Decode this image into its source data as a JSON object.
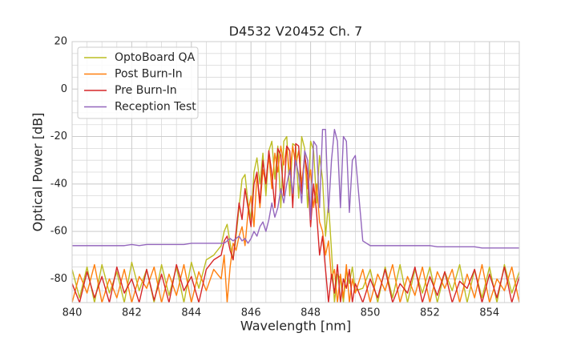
{
  "chart_data": {
    "type": "line",
    "title": "D4532 V20452 Ch. 7",
    "x_label": "Wavelength [nm]",
    "y_label": "Optical Power [dB]",
    "xlim": [
      840,
      855
    ],
    "ylim": [
      -90,
      20
    ],
    "xticks": [
      840,
      842,
      844,
      846,
      848,
      850,
      852,
      854
    ],
    "yticks": [
      -80,
      -60,
      -40,
      -20,
      0,
      20
    ],
    "grid": true,
    "minor_grid": {
      "x": 0.5,
      "y": 5
    },
    "legend": "upper left",
    "x": [
      840,
      840.25,
      840.5,
      840.75,
      841,
      841.25,
      841.5,
      841.75,
      842,
      842.25,
      842.5,
      842.75,
      843,
      843.25,
      843.5,
      843.75,
      844,
      844.25,
      844.5,
      844.75,
      845,
      845.1,
      845.2,
      845.3,
      845.4,
      845.5,
      845.6,
      845.7,
      845.8,
      845.9,
      846,
      846.1,
      846.2,
      846.3,
      846.4,
      846.5,
      846.6,
      846.7,
      846.8,
      846.9,
      847,
      847.1,
      847.2,
      847.3,
      847.4,
      847.5,
      847.6,
      847.7,
      847.8,
      847.9,
      848,
      848.1,
      848.2,
      848.3,
      848.4,
      848.5,
      848.6,
      848.7,
      848.8,
      848.9,
      849,
      849.1,
      849.2,
      849.3,
      849.4,
      849.5,
      849.75,
      850,
      850.25,
      850.5,
      850.75,
      851,
      851.25,
      851.5,
      851.75,
      852,
      852.25,
      852.5,
      852.75,
      853,
      853.25,
      853.5,
      853.75,
      854,
      854.25,
      854.5,
      854.75,
      855
    ],
    "series": [
      {
        "name": "OptoBoard QA",
        "color": "#bcbd22",
        "values": [
          -76,
          -88,
          -75,
          -90,
          -74,
          -86,
          -77,
          -90,
          -73,
          -85,
          -76,
          -90,
          -74,
          -87,
          -75,
          -90,
          -73,
          -84,
          -72,
          -70,
          -66,
          -60,
          -57,
          -65,
          -72,
          -62,
          -50,
          -38,
          -36,
          -48,
          -55,
          -35,
          -29,
          -40,
          -27,
          -45,
          -26,
          -22,
          -38,
          -24,
          -50,
          -22,
          -20,
          -45,
          -23,
          -24,
          -46,
          -20,
          -25,
          -50,
          -22,
          -26,
          -48,
          -28,
          -38,
          -62,
          -48,
          -68,
          -90,
          -78,
          -80,
          -90,
          -76,
          -82,
          -75,
          -85,
          -84,
          -76,
          -90,
          -75,
          -88,
          -74,
          -90,
          -76,
          -86,
          -75,
          -90,
          -77,
          -85,
          -74,
          -90,
          -76,
          -88,
          -75,
          -90,
          -74,
          -86,
          -77
        ]
      },
      {
        "name": "Post Burn-In",
        "color": "#ff7f0e",
        "values": [
          -90,
          -78,
          -86,
          -74,
          -90,
          -80,
          -88,
          -76,
          -90,
          -79,
          -84,
          -75,
          -90,
          -78,
          -87,
          -74,
          -90,
          -77,
          -85,
          -76,
          -80,
          -70,
          -90,
          -75,
          -65,
          -68,
          -62,
          -58,
          -66,
          -52,
          -45,
          -58,
          -36,
          -50,
          -34,
          -40,
          -28,
          -42,
          -27,
          -35,
          -24,
          -32,
          -24,
          -36,
          -24,
          -32,
          -26,
          -40,
          -28,
          -42,
          -34,
          -50,
          -40,
          -56,
          -60,
          -70,
          -64,
          -80,
          -76,
          -90,
          -78,
          -88,
          -74,
          -90,
          -80,
          -86,
          -76,
          -90,
          -78,
          -85,
          -74,
          -90,
          -79,
          -87,
          -75,
          -90,
          -77,
          -84,
          -76,
          -90,
          -78,
          -88,
          -74,
          -90,
          -80,
          -85,
          -75,
          -90
        ]
      },
      {
        "name": "Pre Burn-In",
        "color": "#d62728",
        "values": [
          -82,
          -90,
          -77,
          -88,
          -79,
          -90,
          -75,
          -86,
          -80,
          -90,
          -76,
          -89,
          -78,
          -90,
          -74,
          -85,
          -79,
          -90,
          -76,
          -72,
          -70,
          -64,
          -62,
          -68,
          -72,
          -60,
          -48,
          -55,
          -42,
          -50,
          -58,
          -40,
          -35,
          -48,
          -30,
          -40,
          -26,
          -36,
          -50,
          -25,
          -28,
          -45,
          -24,
          -26,
          -50,
          -23,
          -24,
          -44,
          -28,
          -36,
          -58,
          -40,
          -52,
          -70,
          -62,
          -76,
          -90,
          -78,
          -86,
          -74,
          -90,
          -80,
          -84,
          -76,
          -90,
          -82,
          -90,
          -80,
          -88,
          -76,
          -90,
          -82,
          -86,
          -75,
          -90,
          -79,
          -87,
          -77,
          -90,
          -81,
          -84,
          -76,
          -90,
          -78,
          -88,
          -75,
          -90,
          -79
        ]
      },
      {
        "name": "Reception Test",
        "color": "#9467bd",
        "values": [
          -66,
          -66,
          -66,
          -66,
          -66,
          -66,
          -66,
          -66,
          -65.5,
          -66,
          -65.5,
          -65.5,
          -65.5,
          -65.5,
          -65.5,
          -65.5,
          -65,
          -65,
          -65,
          -65,
          -65,
          -65,
          -64,
          -63,
          -64,
          -63,
          -62,
          -64,
          -63,
          -65,
          -63,
          -60,
          -62,
          -58,
          -56,
          -60,
          -55,
          -48,
          -54,
          -50,
          -42,
          -48,
          -40,
          -34,
          -44,
          -30,
          -36,
          -48,
          -26,
          -30,
          -55,
          -22,
          -24,
          -50,
          -17,
          -17,
          -52,
          -30,
          -17,
          -22,
          -50,
          -20,
          -22,
          -52,
          -30,
          -28,
          -64,
          -66,
          -66,
          -66,
          -66,
          -66,
          -66,
          -66,
          -66,
          -66,
          -66.5,
          -66.5,
          -66.5,
          -66.5,
          -66.5,
          -66.5,
          -67,
          -67,
          -67,
          -67,
          -67,
          -67
        ]
      }
    ]
  }
}
